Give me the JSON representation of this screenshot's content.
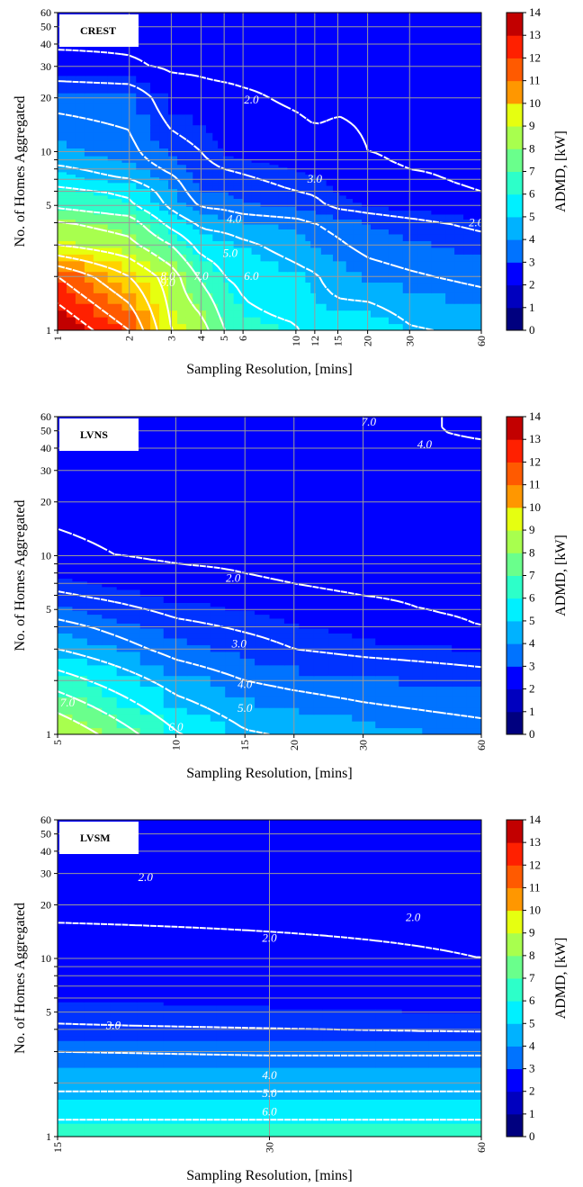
{
  "colors": {
    "scale": [
      "#00007f",
      "#0000bf",
      "#0000ff",
      "#0033ff",
      "#0073ff",
      "#00b2ff",
      "#00f0ff",
      "#2dffc9",
      "#6aff8c",
      "#a8ff4e",
      "#e6ff10",
      "#ffd200",
      "#ff9700",
      "#ff5a00",
      "#ff2000",
      "#c20000",
      "#7f0000"
    ],
    "grid": "#9a9a9a",
    "contour_line": "#ffffff"
  },
  "chart_data": [
    {
      "type": "heatmap",
      "panel_label": "CREST",
      "xlabel": "Sampling Resolution, [mins]",
      "ylabel": "No. of Homes Aggregated",
      "x_scale": "log",
      "y_scale": "log",
      "xlim": [
        1,
        60
      ],
      "ylim": [
        1,
        60
      ],
      "x_ticks": [
        1,
        2,
        3,
        4,
        5,
        6,
        10,
        12,
        15,
        20,
        30,
        60
      ],
      "y_ticks": [
        1,
        2,
        3,
        4,
        5,
        6,
        7,
        8,
        9,
        10,
        20,
        30,
        40,
        50,
        60
      ],
      "y_tick_labels": [
        1,
        5,
        10,
        20,
        30,
        40,
        50,
        60
      ],
      "x_tick_labels": [
        1,
        2,
        3,
        4,
        5,
        6,
        10,
        12,
        15,
        20,
        30,
        60
      ],
      "x": [
        1,
        2,
        3,
        4,
        5,
        6,
        10,
        12,
        15,
        20,
        30,
        60
      ],
      "y": [
        1,
        2,
        3,
        4,
        5,
        6,
        7,
        8,
        9,
        10,
        20,
        30,
        40,
        50,
        60
      ],
      "z": [
        [
          14.0,
          12.0,
          9.0,
          8.5,
          7.0,
          6.3,
          6.1,
          5.5,
          5.6,
          5.8,
          5.1,
          4.8
        ],
        [
          12.0,
          10.0,
          8.5,
          6.8,
          6.0,
          5.8,
          5.3,
          5.1,
          4.6,
          4.3,
          4.1,
          3.8
        ],
        [
          9.0,
          8.3,
          7.0,
          5.6,
          5.5,
          5.2,
          4.6,
          4.3,
          4.1,
          3.8,
          3.6,
          3.3
        ],
        [
          8.1,
          7.5,
          5.6,
          4.8,
          4.6,
          4.4,
          4.2,
          4.0,
          3.8,
          3.5,
          3.2,
          2.8
        ],
        [
          6.8,
          6.2,
          4.8,
          3.9,
          3.8,
          3.6,
          3.4,
          3.2,
          2.8,
          2.6,
          2.4,
          2.1
        ],
        [
          6.3,
          5.8,
          4.5,
          3.5,
          3.5,
          3.3,
          3.0,
          2.9,
          2.6,
          2.4,
          2.2,
          2.0
        ],
        [
          5.5,
          5.0,
          4.2,
          3.3,
          3.2,
          3.1,
          2.8,
          2.7,
          2.5,
          2.3,
          2.1,
          1.9
        ],
        [
          5.2,
          4.6,
          3.8,
          3.2,
          3.0,
          2.9,
          2.6,
          2.5,
          2.4,
          2.2,
          2.0,
          1.9
        ],
        [
          4.7,
          4.3,
          3.6,
          3.1,
          2.8,
          2.6,
          2.5,
          2.4,
          2.3,
          2.1,
          1.9,
          1.8
        ],
        [
          4.5,
          4.2,
          3.4,
          3.0,
          2.6,
          2.4,
          2.3,
          2.2,
          2.2,
          2.0,
          1.9,
          1.8
        ],
        [
          3.8,
          3.7,
          2.4,
          2.2,
          2.2,
          2.1,
          1.9,
          1.8,
          1.9,
          1.9,
          1.8,
          1.8
        ],
        [
          2.3,
          2.1,
          1.9,
          1.9,
          1.8,
          1.8,
          1.8,
          1.8,
          1.8,
          1.8,
          1.8,
          1.8
        ],
        [
          1.9,
          1.9,
          1.8,
          1.8,
          1.8,
          1.8,
          1.8,
          1.8,
          1.8,
          1.8,
          1.8,
          1.8
        ],
        [
          1.8,
          1.8,
          1.8,
          1.8,
          1.8,
          1.8,
          1.8,
          1.8,
          1.8,
          1.8,
          1.8,
          1.8
        ],
        [
          1.8,
          1.8,
          1.8,
          1.8,
          1.8,
          1.8,
          1.8,
          1.8,
          1.8,
          1.8,
          1.8,
          1.8
        ]
      ],
      "contour_levels": [
        2.0,
        3.0,
        4.0,
        5.0,
        6.0,
        7.0,
        8.0,
        9.0,
        10.0,
        11.0,
        12.0,
        13.0
      ],
      "contour_labels": [
        {
          "text": "2.0",
          "x": 6.5,
          "y": 19.5
        },
        {
          "text": "3.0",
          "x": 12.0,
          "y": 7.0
        },
        {
          "text": "4.0",
          "x": 5.5,
          "y": 4.2
        },
        {
          "text": "5.0",
          "x": 5.3,
          "y": 2.7
        },
        {
          "text": "6.0",
          "x": 6.5,
          "y": 2.0
        },
        {
          "text": "7.0",
          "x": 4.0,
          "y": 2.0
        },
        {
          "text": "8.0",
          "x": 2.9,
          "y": 2.0
        },
        {
          "text": "9.0",
          "x": 2.9,
          "y": 1.85
        },
        {
          "text": "2.0",
          "x": 57.0,
          "y": 4.0
        }
      ],
      "colorbar": {
        "label": "ADMD, [kW]",
        "min": 0,
        "max": 14,
        "ticks": [
          0,
          1,
          2,
          3,
          4,
          5,
          6,
          7,
          8,
          9,
          10,
          11,
          12,
          13,
          14
        ]
      }
    },
    {
      "type": "heatmap",
      "panel_label": "LVNS",
      "xlabel": "Sampling Resolution, [mins]",
      "ylabel": "No. of Homes Aggregated",
      "x_scale": "log",
      "y_scale": "log",
      "xlim": [
        5,
        60
      ],
      "ylim": [
        1,
        60
      ],
      "x_ticks": [
        5,
        10,
        15,
        20,
        30,
        60
      ],
      "y_ticks": [
        1,
        2,
        3,
        4,
        5,
        6,
        7,
        8,
        9,
        10,
        20,
        30,
        40,
        50,
        60
      ],
      "y_tick_labels": [
        1,
        5,
        10,
        20,
        30,
        40,
        50,
        60
      ],
      "x_tick_labels": [
        5,
        10,
        15,
        20,
        30,
        60
      ],
      "x": [
        5,
        10,
        15,
        20,
        30,
        60
      ],
      "y": [
        1,
        2,
        3,
        4,
        5,
        6,
        7,
        8,
        9,
        10,
        20,
        30,
        40,
        50,
        60
      ],
      "z": [
        [
          9.0,
          6.1,
          5.1,
          4.9,
          4.6,
          4.3
        ],
        [
          6.5,
          4.6,
          4.0,
          3.8,
          3.6,
          3.3
        ],
        [
          5.0,
          3.7,
          3.3,
          3.0,
          2.8,
          2.6
        ],
        [
          4.3,
          3.2,
          2.9,
          2.7,
          2.4,
          2.0
        ],
        [
          3.6,
          2.8,
          2.6,
          2.4,
          2.1,
          1.9
        ],
        [
          3.1,
          2.5,
          2.3,
          2.1,
          2.0,
          1.9
        ],
        [
          2.8,
          2.3,
          2.1,
          2.0,
          1.9,
          1.8
        ],
        [
          2.5,
          2.2,
          2.0,
          1.9,
          1.8,
          1.8
        ],
        [
          2.3,
          2.0,
          1.9,
          1.9,
          1.8,
          1.8
        ],
        [
          2.1,
          1.9,
          1.9,
          1.8,
          1.8,
          1.8
        ],
        [
          1.9,
          1.8,
          1.8,
          1.8,
          1.8,
          1.8
        ],
        [
          1.8,
          1.8,
          1.8,
          1.8,
          1.8,
          1.8
        ],
        [
          1.8,
          1.8,
          1.8,
          1.8,
          1.8,
          1.9
        ],
        [
          1.8,
          1.8,
          1.8,
          1.8,
          1.8,
          2.1
        ],
        [
          1.8,
          1.8,
          1.8,
          1.8,
          1.8,
          2.1
        ]
      ],
      "contour_levels": [
        2.0,
        3.0,
        4.0,
        5.0,
        6.0,
        7.0,
        8.0
      ],
      "contour_labels": [
        {
          "text": "2.0",
          "x": 14.0,
          "y": 7.5
        },
        {
          "text": "3.0",
          "x": 14.5,
          "y": 3.2
        },
        {
          "text": "4.0",
          "x": 15.0,
          "y": 1.9
        },
        {
          "text": "5.0",
          "x": 15.0,
          "y": 1.4
        },
        {
          "text": "6.0",
          "x": 10.0,
          "y": 1.1
        },
        {
          "text": "7.0",
          "x": 5.3,
          "y": 1.5
        },
        {
          "text": "7.0",
          "x": 31.0,
          "y": 56.0
        },
        {
          "text": "4.0",
          "x": 43.0,
          "y": 42.0
        }
      ],
      "colorbar": {
        "label": "ADMD, [kW]",
        "min": 0,
        "max": 14,
        "ticks": [
          0,
          1,
          2,
          3,
          4,
          5,
          6,
          7,
          8,
          9,
          10,
          11,
          12,
          13,
          14
        ]
      }
    },
    {
      "type": "heatmap",
      "panel_label": "LVSM",
      "xlabel": "Sampling Resolution, [mins]",
      "ylabel": "No. of Homes Aggregated",
      "x_scale": "log",
      "y_scale": "log",
      "xlim": [
        15,
        60
      ],
      "ylim": [
        1,
        60
      ],
      "x_ticks": [
        15,
        30,
        60
      ],
      "y_ticks": [
        1,
        2,
        3,
        4,
        5,
        6,
        7,
        8,
        9,
        10,
        20,
        30,
        40,
        50,
        60
      ],
      "y_tick_labels": [
        1,
        5,
        10,
        20,
        30,
        40,
        50,
        60
      ],
      "x_tick_labels": [
        15,
        30,
        60
      ],
      "x": [
        15,
        30,
        60
      ],
      "y": [
        1,
        2,
        3,
        4,
        5,
        6,
        7,
        8,
        9,
        10,
        20,
        30,
        40,
        50,
        60
      ],
      "z": [
        [
          6.6,
          6.6,
          6.6
        ],
        [
          4.7,
          4.7,
          4.7
        ],
        [
          4.0,
          3.9,
          3.9
        ],
        [
          3.1,
          3.0,
          2.9
        ],
        [
          2.8,
          2.7,
          2.6
        ],
        [
          2.6,
          2.5,
          2.4
        ],
        [
          2.5,
          2.4,
          2.3
        ],
        [
          2.4,
          2.3,
          2.2
        ],
        [
          2.3,
          2.2,
          2.1
        ],
        [
          2.2,
          2.1,
          2.0
        ],
        [
          1.9,
          1.9,
          1.9
        ],
        [
          1.8,
          1.8,
          1.8
        ],
        [
          1.8,
          1.8,
          1.8
        ],
        [
          1.8,
          1.8,
          1.8
        ],
        [
          1.8,
          1.8,
          1.8
        ]
      ],
      "contour_levels": [
        2.0,
        3.0,
        4.0,
        5.0,
        6.0
      ],
      "contour_labels": [
        {
          "text": "2.0",
          "x": 20.0,
          "y": 28.5
        },
        {
          "text": "2.0",
          "x": 48.0,
          "y": 17.0
        },
        {
          "text": "2.0",
          "x": 30.0,
          "y": 13.0
        },
        {
          "text": "3.0",
          "x": 18.0,
          "y": 4.2
        },
        {
          "text": "4.0",
          "x": 30.0,
          "y": 2.2
        },
        {
          "text": "5.0",
          "x": 30.0,
          "y": 1.75
        },
        {
          "text": "6.0",
          "x": 30.0,
          "y": 1.38
        }
      ],
      "colorbar": {
        "label": "ADMD, [kW]",
        "min": 0,
        "max": 14,
        "ticks": [
          0,
          1,
          2,
          3,
          4,
          5,
          6,
          7,
          8,
          9,
          10,
          11,
          12,
          13,
          14
        ]
      }
    }
  ]
}
